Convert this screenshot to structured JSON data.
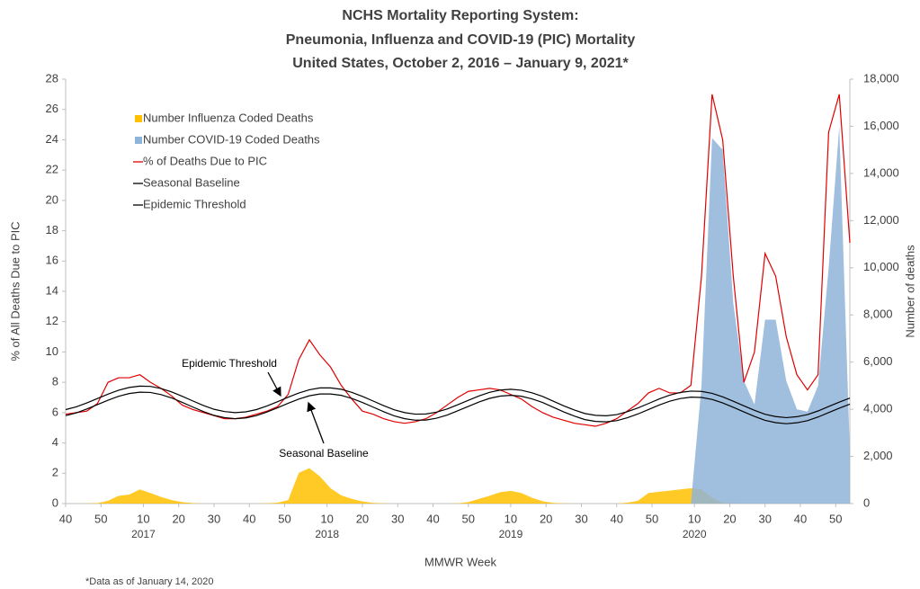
{
  "chart_data": {
    "type": "combo",
    "title": [
      "NCHS Mortality Reporting System:",
      "Pneumonia, Influenza and COVID-19 (PIC) Mortality",
      "United States, October 2, 2016 – January 9, 2021*"
    ],
    "y_label": "% of All Deaths Due to PIC",
    "y2_label": "Number of deaths",
    "x_label": "MMWR Week",
    "footnote": "*Data as of January 14, 2020",
    "annotations": [
      "Epidemic Threshold",
      "Seasonal Baseline"
    ],
    "xlim": [
      0,
      222
    ],
    "xticks": [
      {
        "value": 0,
        "label": "40"
      },
      {
        "value": 10,
        "label": "50"
      },
      {
        "value": 22,
        "label": "10"
      },
      {
        "value": 32,
        "label": "20"
      },
      {
        "value": 42,
        "label": "30"
      },
      {
        "value": 52,
        "label": "40"
      },
      {
        "value": 62,
        "label": "50"
      },
      {
        "value": 74,
        "label": "10"
      },
      {
        "value": 84,
        "label": "20"
      },
      {
        "value": 94,
        "label": "30"
      },
      {
        "value": 104,
        "label": "40"
      },
      {
        "value": 114,
        "label": "50"
      },
      {
        "value": 126,
        "label": "10"
      },
      {
        "value": 136,
        "label": "20"
      },
      {
        "value": 146,
        "label": "30"
      },
      {
        "value": 156,
        "label": "40"
      },
      {
        "value": 166,
        "label": "50"
      },
      {
        "value": 178,
        "label": "10"
      },
      {
        "value": 188,
        "label": "20"
      },
      {
        "value": 198,
        "label": "30"
      },
      {
        "value": 208,
        "label": "40"
      },
      {
        "value": 218,
        "label": "50"
      }
    ],
    "year_labels": [
      {
        "value": 22,
        "label": "2017"
      },
      {
        "value": 74,
        "label": "2018"
      },
      {
        "value": 126,
        "label": "2019"
      },
      {
        "value": 178,
        "label": "2020"
      }
    ],
    "ylim": [
      0,
      28
    ],
    "yticks": [
      0,
      2,
      4,
      6,
      8,
      10,
      12,
      14,
      16,
      18,
      20,
      22,
      24,
      26,
      28
    ],
    "y2lim": [
      0,
      18000
    ],
    "y2ticks": [
      0,
      {
        "value": 2000,
        "label": "2,000"
      },
      {
        "value": 4000,
        "label": "4,000"
      },
      {
        "value": 6000,
        "label": "6,000"
      },
      {
        "value": 8000,
        "label": "8,000"
      },
      {
        "value": 10000,
        "label": "10,000"
      },
      {
        "value": 12000,
        "label": "12,000"
      },
      {
        "value": 14000,
        "label": "14,000"
      },
      {
        "value": 16000,
        "label": "16,000"
      },
      {
        "value": 18000,
        "label": "18,000"
      }
    ],
    "x": [
      0,
      3,
      6,
      9,
      12,
      15,
      18,
      21,
      24,
      27,
      30,
      33,
      36,
      39,
      42,
      45,
      48,
      51,
      54,
      57,
      60,
      63,
      66,
      69,
      72,
      75,
      78,
      81,
      84,
      87,
      90,
      93,
      96,
      99,
      102,
      105,
      108,
      111,
      114,
      117,
      120,
      123,
      126,
      129,
      132,
      135,
      138,
      141,
      144,
      147,
      150,
      153,
      156,
      159,
      162,
      165,
      168,
      171,
      174,
      177,
      180,
      183,
      186,
      189,
      192,
      195,
      198,
      201,
      204,
      207,
      210,
      213,
      216,
      219,
      222
    ],
    "series": [
      {
        "name": "Number Influenza Coded Deaths",
        "type": "area",
        "axis": "y2",
        "color": "#ffc000",
        "values": [
          0,
          0,
          5,
          20,
          120,
          330,
          380,
          600,
          450,
          280,
          150,
          60,
          20,
          0,
          0,
          0,
          0,
          0,
          0,
          10,
          40,
          150,
          1300,
          1500,
          1150,
          650,
          350,
          200,
          90,
          30,
          10,
          0,
          0,
          0,
          0,
          0,
          0,
          10,
          60,
          200,
          330,
          480,
          540,
          450,
          250,
          100,
          30,
          10,
          0,
          0,
          0,
          0,
          0,
          40,
          120,
          450,
          500,
          550,
          600,
          650,
          600,
          250,
          40,
          5,
          0,
          0,
          0,
          0,
          0,
          0,
          0,
          0,
          0,
          0,
          0
        ]
      },
      {
        "name": "Number COVID-19 Coded Deaths",
        "type": "area",
        "axis": "y2",
        "color": "#8fb4d9",
        "values": [
          0,
          0,
          0,
          0,
          0,
          0,
          0,
          0,
          0,
          0,
          0,
          0,
          0,
          0,
          0,
          0,
          0,
          0,
          0,
          0,
          0,
          0,
          0,
          0,
          0,
          0,
          0,
          0,
          0,
          0,
          0,
          0,
          0,
          0,
          0,
          0,
          0,
          0,
          0,
          0,
          0,
          0,
          0,
          0,
          0,
          0,
          0,
          0,
          0,
          0,
          0,
          0,
          0,
          0,
          0,
          0,
          0,
          0,
          0,
          0,
          5000,
          15500,
          15000,
          8500,
          5200,
          4200,
          7800,
          7800,
          5200,
          4000,
          3900,
          5000,
          10000,
          16000,
          2200
        ]
      },
      {
        "name": "% of Deaths Due to PIC",
        "type": "line",
        "color": "#e00000",
        "values": [
          5.9,
          6.0,
          6.1,
          6.6,
          8.0,
          8.3,
          8.3,
          8.5,
          8.0,
          7.6,
          7.1,
          6.5,
          6.2,
          6.0,
          5.8,
          5.6,
          5.6,
          5.7,
          5.9,
          6.1,
          6.4,
          7.2,
          9.5,
          10.8,
          9.8,
          9.0,
          7.8,
          6.9,
          6.1,
          5.9,
          5.6,
          5.4,
          5.3,
          5.4,
          5.6,
          6.0,
          6.5,
          7.0,
          7.4,
          7.5,
          7.6,
          7.5,
          7.2,
          6.9,
          6.4,
          6.0,
          5.7,
          5.5,
          5.3,
          5.2,
          5.1,
          5.3,
          5.6,
          6.1,
          6.6,
          7.3,
          7.6,
          7.3,
          7.3,
          7.8,
          15.0,
          27.0,
          24.0,
          15.0,
          8.0,
          10.0,
          16.5,
          15.0,
          11.0,
          8.5,
          7.5,
          8.5,
          24.5,
          27.0,
          17.2
        ]
      },
      {
        "name": "Seasonal Baseline",
        "type": "line",
        "color": "#000000",
        "values": [
          5.8,
          5.98,
          6.24,
          6.53,
          6.82,
          7.08,
          7.26,
          7.35,
          7.33,
          7.19,
          6.97,
          6.68,
          6.37,
          6.07,
          5.82,
          5.67,
          5.6,
          5.65,
          5.8,
          6.04,
          6.32,
          6.62,
          6.89,
          7.11,
          7.23,
          7.23,
          7.14,
          6.94,
          6.67,
          6.37,
          6.06,
          5.79,
          5.6,
          5.5,
          5.51,
          5.63,
          5.84,
          6.12,
          6.41,
          6.7,
          6.94,
          7.09,
          7.14,
          7.08,
          6.91,
          6.67,
          6.36,
          6.05,
          5.77,
          5.54,
          5.42,
          5.39,
          5.47,
          5.66,
          5.91,
          6.2,
          6.5,
          6.75,
          6.93,
          7.02,
          7.0,
          6.87,
          6.64,
          6.35,
          6.05,
          5.75,
          5.49,
          5.34,
          5.27,
          5.33,
          5.47,
          5.71,
          6.0,
          6.29,
          6.56
        ]
      },
      {
        "name": "Epidemic Threshold",
        "type": "line",
        "color": "#000000",
        "values": [
          6.2,
          6.38,
          6.64,
          6.93,
          7.22,
          7.48,
          7.66,
          7.75,
          7.73,
          7.59,
          7.37,
          7.08,
          6.77,
          6.47,
          6.22,
          6.07,
          6.0,
          6.05,
          6.2,
          6.44,
          6.72,
          7.02,
          7.29,
          7.51,
          7.63,
          7.63,
          7.54,
          7.34,
          7.07,
          6.77,
          6.46,
          6.19,
          6.0,
          5.9,
          5.91,
          6.03,
          6.24,
          6.52,
          6.81,
          7.1,
          7.34,
          7.49,
          7.54,
          7.48,
          7.31,
          7.07,
          6.76,
          6.45,
          6.17,
          5.94,
          5.82,
          5.79,
          5.87,
          6.06,
          6.31,
          6.6,
          6.9,
          7.15,
          7.33,
          7.42,
          7.4,
          7.27,
          7.04,
          6.75,
          6.45,
          6.15,
          5.89,
          5.74,
          5.67,
          5.73,
          5.87,
          6.11,
          6.4,
          6.69,
          6.96
        ]
      }
    ]
  }
}
